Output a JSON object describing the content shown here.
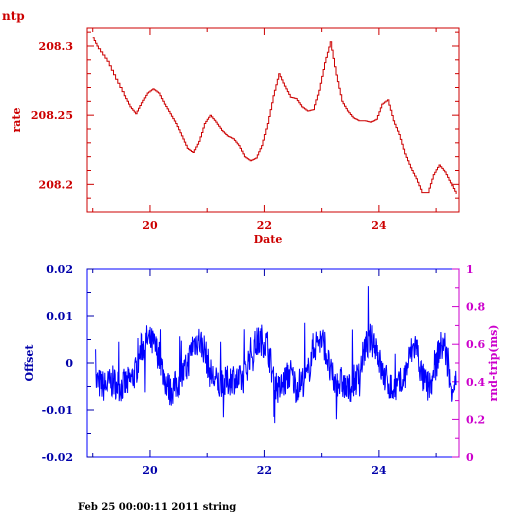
{
  "footer": {
    "text": "Feb 25 00:00:11 2011 string"
  },
  "colors": {
    "rate": "#cc0000",
    "offset": "#0000ff",
    "rtt": "#cc00cc",
    "axis_blue": "#0000aa"
  },
  "chart_data": [
    {
      "type": "line",
      "title": "ntp",
      "xlabel": "Date",
      "ylabel": "rate",
      "xlim": [
        18.9,
        25.4
      ],
      "ylim": [
        208.18,
        208.313
      ],
      "xticks": [
        20,
        22,
        24
      ],
      "xtick_labels": [
        "20",
        "22",
        "24"
      ],
      "yticks": [
        208.2,
        208.25,
        208.3
      ],
      "ytick_labels": [
        "208.2",
        "208.25",
        "208.3"
      ],
      "series": [
        {
          "x": [
            19.0,
            19.1,
            19.25,
            19.4,
            19.55,
            19.65,
            19.75,
            19.85,
            19.95,
            20.05,
            20.15,
            20.25,
            20.35,
            20.45,
            20.55,
            20.65,
            20.75,
            20.85,
            20.95,
            21.05,
            21.15,
            21.25,
            21.35,
            21.45,
            21.55,
            21.65,
            21.75,
            21.85,
            21.95,
            22.05,
            22.15,
            22.25,
            22.35,
            22.45,
            22.55,
            22.65,
            22.75,
            22.85,
            22.95,
            23.05,
            23.15,
            23.25,
            23.35,
            23.45,
            23.55,
            23.65,
            23.75,
            23.85,
            23.95,
            24.05,
            24.15,
            24.25,
            24.35,
            24.45,
            24.55,
            24.65,
            24.75,
            24.85,
            24.95,
            25.05,
            25.15,
            25.25,
            25.35
          ],
          "values": [
            208.306,
            208.298,
            208.289,
            208.276,
            208.264,
            208.256,
            208.251,
            208.259,
            208.266,
            208.269,
            208.266,
            208.258,
            208.251,
            208.244,
            208.235,
            208.226,
            208.223,
            208.231,
            208.244,
            208.25,
            208.245,
            208.239,
            208.235,
            208.233,
            208.228,
            208.22,
            208.217,
            208.219,
            208.228,
            208.244,
            208.264,
            208.28,
            208.271,
            208.263,
            208.262,
            208.256,
            208.253,
            208.254,
            208.268,
            208.288,
            208.303,
            208.279,
            208.26,
            208.253,
            208.248,
            208.246,
            208.246,
            208.245,
            208.247,
            208.258,
            208.261,
            208.246,
            208.236,
            208.222,
            208.212,
            208.204,
            208.194,
            208.194,
            208.207,
            208.214,
            208.209,
            208.201,
            208.193
          ]
        }
      ]
    },
    {
      "type": "line",
      "xlabel": "",
      "ylabel": "Offset",
      "y2label": "rnd-trip(ms)",
      "xlim": [
        18.9,
        25.4
      ],
      "ylim": [
        -0.02,
        0.02
      ],
      "y2lim": [
        0,
        1
      ],
      "xticks": [
        20,
        22,
        24
      ],
      "xtick_labels": [
        "20",
        "22",
        "24"
      ],
      "yticks": [
        -0.02,
        -0.01,
        0,
        0.01,
        0.02
      ],
      "ytick_labels": [
        "-0.02",
        "-0.01",
        "0",
        "0.01",
        "0.02"
      ],
      "y2ticks": [
        0,
        0.2,
        0.4,
        0.6,
        0.8,
        1
      ],
      "y2tick_labels": [
        "0",
        "0.2",
        "0.4",
        "0.6",
        "0.8",
        "1"
      ],
      "series": [
        {
          "x": [
            19.05,
            19.2,
            19.35,
            19.5,
            19.65,
            19.75,
            19.85,
            19.95,
            20.05,
            20.15,
            20.25,
            20.35,
            20.45,
            20.55,
            20.65,
            20.75,
            20.85,
            20.95,
            21.05,
            21.15,
            21.25,
            21.35,
            21.45,
            21.55,
            21.65,
            21.75,
            21.85,
            21.95,
            22.05,
            22.15,
            22.25,
            22.35,
            22.45,
            22.55,
            22.65,
            22.75,
            22.85,
            22.95,
            23.05,
            23.15,
            23.25,
            23.35,
            23.45,
            23.55,
            23.65,
            23.75,
            23.85,
            23.95,
            24.05,
            24.15,
            24.25,
            24.35,
            24.45,
            24.55,
            24.65,
            24.75,
            24.85,
            24.95,
            25.05,
            25.15,
            25.25,
            25.35
          ],
          "values": [
            -0.004,
            -0.005,
            -0.004,
            -0.005,
            -0.004,
            -0.002,
            0.003,
            0.005,
            0.004,
            0.002,
            -0.003,
            -0.006,
            -0.005,
            -0.003,
            -0.001,
            0.004,
            0.005,
            0.003,
            -0.002,
            -0.004,
            -0.005,
            -0.004,
            -0.003,
            -0.004,
            -0.003,
            0.002,
            0.004,
            0.005,
            0.004,
            -0.003,
            -0.006,
            -0.004,
            -0.002,
            -0.005,
            -0.004,
            -0.003,
            0.003,
            0.005,
            0.004,
            -0.002,
            -0.005,
            -0.004,
            -0.006,
            -0.004,
            -0.003,
            0.003,
            0.005,
            0.004,
            -0.002,
            -0.004,
            -0.006,
            -0.005,
            -0.003,
            0.002,
            0.004,
            -0.003,
            -0.005,
            -0.004,
            0.003,
            0.004,
            -0.005,
            -0.004
          ]
        }
      ]
    }
  ]
}
